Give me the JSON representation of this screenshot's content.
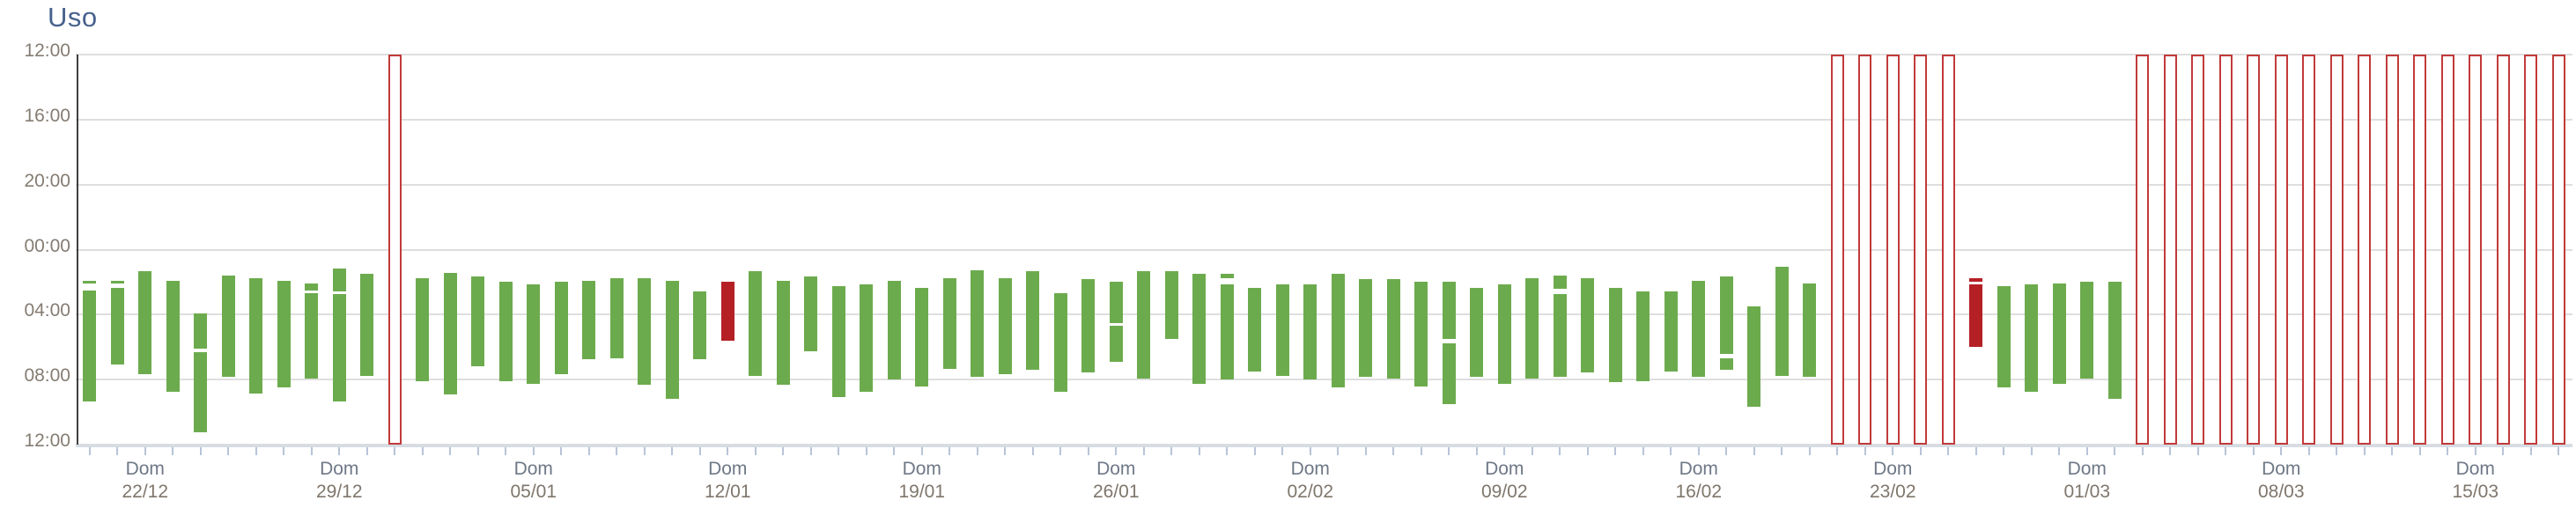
{
  "title": "Uso",
  "colors": {
    "used": "#6cab4d",
    "short_use": "#b52025",
    "no_data_border": "#c23a3a",
    "title_text": "#46618c"
  },
  "chart_data": {
    "type": "bar",
    "title": "Uso",
    "orientation": "vertical-time-of-day",
    "y_axis": {
      "ticks": [
        "12:00",
        "16:00",
        "20:00",
        "00:00",
        "04:00",
        "08:00",
        "12:00"
      ],
      "description": "noon-to-noon 24h axis, 4h steps, grid on"
    },
    "x_axis": {
      "dow_label": "Dom",
      "week_dates": [
        "22/12",
        "29/12",
        "05/01",
        "12/01",
        "19/01",
        "26/01",
        "02/02",
        "09/02",
        "16/02",
        "23/02",
        "01/03",
        "08/03",
        "15/03"
      ],
      "first_week_label_day_index": 2,
      "label_interval_days": 7
    },
    "legend": {
      "used": "green filled bar (usage period)",
      "short_use": "red filled bar (short usage)",
      "no_data": "red outlined full-height bar (no data)"
    },
    "days": [
      {
        "date": "20/12",
        "status": "used",
        "segments": [
          [
            "01:55",
            "02:05"
          ],
          [
            "02:30",
            "09:20"
          ]
        ]
      },
      {
        "date": "21/12",
        "status": "used",
        "segments": [
          [
            "01:55",
            "02:05"
          ],
          [
            "02:20",
            "07:05"
          ]
        ]
      },
      {
        "date": "22/12",
        "status": "used",
        "segments": [
          [
            "01:20",
            "07:40"
          ]
        ]
      },
      {
        "date": "23/12",
        "status": "used",
        "segments": [
          [
            "01:55",
            "08:45"
          ]
        ]
      },
      {
        "date": "24/12",
        "status": "used",
        "segments": [
          [
            "03:55",
            "06:05"
          ],
          [
            "06:20",
            "11:15"
          ]
        ]
      },
      {
        "date": "25/12",
        "status": "used",
        "segments": [
          [
            "01:35",
            "07:50"
          ]
        ]
      },
      {
        "date": "26/12",
        "status": "used",
        "segments": [
          [
            "01:45",
            "08:50"
          ]
        ]
      },
      {
        "date": "27/12",
        "status": "used",
        "segments": [
          [
            "01:55",
            "08:30"
          ]
        ]
      },
      {
        "date": "28/12",
        "status": "used",
        "segments": [
          [
            "02:05",
            "02:30"
          ],
          [
            "02:40",
            "07:55"
          ]
        ]
      },
      {
        "date": "29/12",
        "status": "used",
        "segments": [
          [
            "01:10",
            "02:35"
          ],
          [
            "02:45",
            "09:20"
          ]
        ]
      },
      {
        "date": "30/12",
        "status": "used",
        "segments": [
          [
            "01:30",
            "07:45"
          ]
        ]
      },
      {
        "date": "31/12",
        "status": "no-data"
      },
      {
        "date": "01/01",
        "status": "used",
        "segments": [
          [
            "01:45",
            "08:05"
          ]
        ]
      },
      {
        "date": "02/01",
        "status": "used",
        "segments": [
          [
            "01:25",
            "08:55"
          ]
        ]
      },
      {
        "date": "03/01",
        "status": "used",
        "segments": [
          [
            "01:40",
            "07:10"
          ]
        ]
      },
      {
        "date": "04/01",
        "status": "used",
        "segments": [
          [
            "02:00",
            "08:05"
          ]
        ]
      },
      {
        "date": "05/01",
        "status": "used",
        "segments": [
          [
            "02:10",
            "08:15"
          ]
        ]
      },
      {
        "date": "06/01",
        "status": "used",
        "segments": [
          [
            "02:00",
            "07:40"
          ]
        ]
      },
      {
        "date": "07/01",
        "status": "used",
        "segments": [
          [
            "01:55",
            "06:45"
          ]
        ]
      },
      {
        "date": "08/01",
        "status": "used",
        "segments": [
          [
            "01:45",
            "06:40"
          ]
        ]
      },
      {
        "date": "09/01",
        "status": "used",
        "segments": [
          [
            "01:45",
            "08:20"
          ]
        ]
      },
      {
        "date": "10/01",
        "status": "used",
        "segments": [
          [
            "01:55",
            "09:10"
          ]
        ]
      },
      {
        "date": "11/01",
        "status": "used",
        "segments": [
          [
            "02:35",
            "06:45"
          ]
        ]
      },
      {
        "date": "12/01",
        "status": "short-use",
        "segments": [
          [
            "02:00",
            "05:35"
          ]
        ]
      },
      {
        "date": "13/01",
        "status": "used",
        "segments": [
          [
            "01:20",
            "07:45"
          ]
        ]
      },
      {
        "date": "14/01",
        "status": "used",
        "segments": [
          [
            "01:55",
            "08:20"
          ]
        ]
      },
      {
        "date": "15/01",
        "status": "used",
        "segments": [
          [
            "01:40",
            "06:15"
          ]
        ]
      },
      {
        "date": "16/01",
        "status": "used",
        "segments": [
          [
            "02:15",
            "09:05"
          ]
        ]
      },
      {
        "date": "17/01",
        "status": "used",
        "segments": [
          [
            "02:10",
            "08:45"
          ]
        ]
      },
      {
        "date": "18/01",
        "status": "used",
        "segments": [
          [
            "01:55",
            "08:00"
          ]
        ]
      },
      {
        "date": "19/01",
        "status": "used",
        "segments": [
          [
            "02:20",
            "08:25"
          ]
        ]
      },
      {
        "date": "20/01",
        "status": "used",
        "segments": [
          [
            "01:45",
            "07:20"
          ]
        ]
      },
      {
        "date": "21/01",
        "status": "used",
        "segments": [
          [
            "01:15",
            "07:50"
          ]
        ]
      },
      {
        "date": "22/01",
        "status": "used",
        "segments": [
          [
            "01:45",
            "07:40"
          ]
        ]
      },
      {
        "date": "23/01",
        "status": "used",
        "segments": [
          [
            "01:20",
            "07:25"
          ]
        ]
      },
      {
        "date": "24/01",
        "status": "used",
        "segments": [
          [
            "02:40",
            "08:45"
          ]
        ]
      },
      {
        "date": "25/01",
        "status": "used",
        "segments": [
          [
            "01:50",
            "07:35"
          ]
        ]
      },
      {
        "date": "26/01",
        "status": "used",
        "segments": [
          [
            "02:00",
            "04:30"
          ],
          [
            "04:40",
            "06:55"
          ]
        ]
      },
      {
        "date": "27/01",
        "status": "used",
        "segments": [
          [
            "01:20",
            "07:55"
          ]
        ]
      },
      {
        "date": "28/01",
        "status": "used",
        "segments": [
          [
            "01:20",
            "05:30"
          ]
        ]
      },
      {
        "date": "29/01",
        "status": "used",
        "segments": [
          [
            "01:30",
            "08:15"
          ]
        ]
      },
      {
        "date": "30/01",
        "status": "used",
        "segments": [
          [
            "01:30",
            "01:45"
          ],
          [
            "02:10",
            "08:00"
          ]
        ]
      },
      {
        "date": "31/01",
        "status": "used",
        "segments": [
          [
            "02:20",
            "07:30"
          ]
        ]
      },
      {
        "date": "01/02",
        "status": "used",
        "segments": [
          [
            "02:10",
            "07:45"
          ]
        ]
      },
      {
        "date": "02/02",
        "status": "used",
        "segments": [
          [
            "02:10",
            "08:00"
          ]
        ]
      },
      {
        "date": "03/02",
        "status": "used",
        "segments": [
          [
            "01:30",
            "08:30"
          ]
        ]
      },
      {
        "date": "04/02",
        "status": "used",
        "segments": [
          [
            "01:50",
            "07:50"
          ]
        ]
      },
      {
        "date": "05/02",
        "status": "used",
        "segments": [
          [
            "01:50",
            "07:55"
          ]
        ]
      },
      {
        "date": "06/02",
        "status": "used",
        "segments": [
          [
            "02:00",
            "08:25"
          ]
        ]
      },
      {
        "date": "07/02",
        "status": "used",
        "segments": [
          [
            "02:00",
            "05:30"
          ],
          [
            "05:45",
            "09:30"
          ]
        ]
      },
      {
        "date": "08/02",
        "status": "used",
        "segments": [
          [
            "02:20",
            "07:50"
          ]
        ]
      },
      {
        "date": "09/02",
        "status": "used",
        "segments": [
          [
            "02:10",
            "08:15"
          ]
        ]
      },
      {
        "date": "10/02",
        "status": "used",
        "segments": [
          [
            "01:45",
            "07:55"
          ]
        ]
      },
      {
        "date": "11/02",
        "status": "used",
        "segments": [
          [
            "01:35",
            "02:25"
          ],
          [
            "02:45",
            "07:50"
          ]
        ]
      },
      {
        "date": "12/02",
        "status": "used",
        "segments": [
          [
            "01:45",
            "07:35"
          ]
        ]
      },
      {
        "date": "13/02",
        "status": "used",
        "segments": [
          [
            "02:20",
            "08:10"
          ]
        ]
      },
      {
        "date": "14/02",
        "status": "used",
        "segments": [
          [
            "02:35",
            "08:05"
          ]
        ]
      },
      {
        "date": "15/02",
        "status": "used",
        "segments": [
          [
            "02:35",
            "07:30"
          ]
        ]
      },
      {
        "date": "16/02",
        "status": "used",
        "segments": [
          [
            "01:55",
            "07:50"
          ]
        ]
      },
      {
        "date": "17/02",
        "status": "used",
        "segments": [
          [
            "01:40",
            "06:25"
          ],
          [
            "06:40",
            "07:25"
          ]
        ]
      },
      {
        "date": "18/02",
        "status": "used",
        "segments": [
          [
            "03:30",
            "09:40"
          ]
        ]
      },
      {
        "date": "19/02",
        "status": "used",
        "segments": [
          [
            "01:05",
            "07:45"
          ]
        ]
      },
      {
        "date": "20/02",
        "status": "used",
        "segments": [
          [
            "02:05",
            "07:50"
          ]
        ]
      },
      {
        "date": "21/02",
        "status": "no-data"
      },
      {
        "date": "22/02",
        "status": "no-data"
      },
      {
        "date": "23/02",
        "status": "no-data"
      },
      {
        "date": "24/02",
        "status": "no-data"
      },
      {
        "date": "25/02",
        "status": "no-data"
      },
      {
        "date": "26/02",
        "status": "short-use",
        "segments": [
          [
            "01:45",
            "02:00"
          ],
          [
            "02:10",
            "06:00"
          ]
        ]
      },
      {
        "date": "27/02",
        "status": "used",
        "segments": [
          [
            "02:15",
            "08:30"
          ]
        ]
      },
      {
        "date": "28/02",
        "status": "used",
        "segments": [
          [
            "02:10",
            "08:45"
          ]
        ]
      },
      {
        "date": "29/02",
        "status": "used",
        "segments": [
          [
            "02:05",
            "08:15"
          ]
        ]
      },
      {
        "date": "01/03",
        "status": "used",
        "segments": [
          [
            "02:00",
            "07:55"
          ]
        ]
      },
      {
        "date": "02/03",
        "status": "used",
        "segments": [
          [
            "02:00",
            "09:10"
          ]
        ]
      },
      {
        "date": "03/03",
        "status": "no-data"
      },
      {
        "date": "04/03",
        "status": "no-data"
      },
      {
        "date": "05/03",
        "status": "no-data"
      },
      {
        "date": "06/03",
        "status": "no-data"
      },
      {
        "date": "07/03",
        "status": "no-data"
      },
      {
        "date": "08/03",
        "status": "no-data"
      },
      {
        "date": "09/03",
        "status": "no-data"
      },
      {
        "date": "10/03",
        "status": "no-data"
      },
      {
        "date": "11/03",
        "status": "no-data"
      },
      {
        "date": "12/03",
        "status": "no-data"
      },
      {
        "date": "13/03",
        "status": "no-data"
      },
      {
        "date": "14/03",
        "status": "no-data"
      },
      {
        "date": "15/03",
        "status": "no-data"
      },
      {
        "date": "16/03",
        "status": "no-data"
      },
      {
        "date": "17/03",
        "status": "no-data"
      },
      {
        "date": "18/03",
        "status": "no-data"
      }
    ]
  }
}
